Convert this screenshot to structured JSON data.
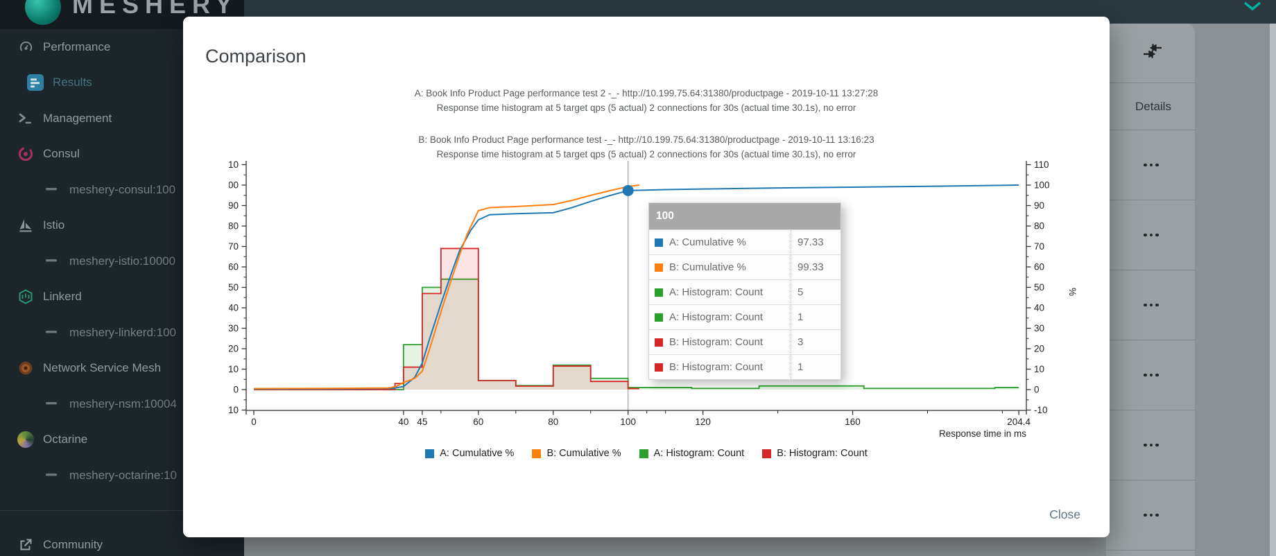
{
  "app": {
    "wordmark": "MESHERY"
  },
  "sidebar": {
    "items": [
      {
        "id": "performance",
        "label": "Performance",
        "icon": "gauge-icon",
        "level": 0,
        "active": false
      },
      {
        "id": "results",
        "label": "Results",
        "icon": "bar-chart-icon",
        "level": 1,
        "active": true
      },
      {
        "id": "management",
        "label": "Management",
        "icon": "terminal-icon",
        "level": 0,
        "active": false
      },
      {
        "id": "consul",
        "label": "Consul",
        "icon": "consul-icon",
        "level": 0,
        "active": false
      },
      {
        "id": "meshery-consul",
        "label": "meshery-consul:100",
        "icon": "dash-icon",
        "level": 2,
        "active": false
      },
      {
        "id": "istio",
        "label": "Istio",
        "icon": "istio-icon",
        "level": 0,
        "active": false
      },
      {
        "id": "meshery-istio",
        "label": "meshery-istio:10000",
        "icon": "dash-icon",
        "level": 2,
        "active": false
      },
      {
        "id": "linkerd",
        "label": "Linkerd",
        "icon": "linkerd-icon",
        "level": 0,
        "active": false
      },
      {
        "id": "meshery-linkerd",
        "label": "meshery-linkerd:100",
        "icon": "dash-icon",
        "level": 2,
        "active": false
      },
      {
        "id": "nsm",
        "label": "Network Service Mesh",
        "icon": "nsm-icon",
        "level": 0,
        "active": false
      },
      {
        "id": "meshery-nsm",
        "label": "meshery-nsm:10004",
        "icon": "dash-icon",
        "level": 2,
        "active": false
      },
      {
        "id": "octarine",
        "label": "Octarine",
        "icon": "octarine-icon",
        "level": 0,
        "active": false
      },
      {
        "id": "meshery-octarine",
        "label": "meshery-octarine:10",
        "icon": "dash-icon",
        "level": 2,
        "active": false
      }
    ],
    "footer_item": {
      "id": "community",
      "label": "Community",
      "icon": "external-link-icon"
    }
  },
  "details_panel": {
    "header": "Details",
    "row_count": 6,
    "action_icon": "more-horiz-icon",
    "collapse_icon": "compress-arrows-icon"
  },
  "modal": {
    "title": "Comparison",
    "close_label": "Close"
  },
  "chart_data": {
    "type": "combo",
    "title_lines": [
      "A: Book Info Product Page performance test 2 -_- http://10.199.75.64:31380/productpage - 2019-10-11 13:27:28",
      "Response time histogram at 5 target qps (5 actual) 2 connections for 30s (actual time 30.1s), no error",
      "B: Book Info Product Page performance test -_- http://10.199.75.64:31380/productpage - 2019-10-11 13:16:23",
      "Response time histogram at 5 target qps (5 actual) 2 connections for 30s (actual time 30.1s), no error"
    ],
    "x_axis": {
      "label": "Response time in ms",
      "min": 0,
      "max": 204.4,
      "ticks": [
        {
          "v": 0,
          "label": "0"
        },
        {
          "v": 40,
          "label": "40"
        },
        {
          "v": 45,
          "label": "45"
        },
        {
          "v": 60,
          "label": "60"
        },
        {
          "v": 80,
          "label": "80"
        },
        {
          "v": 100,
          "label": "100"
        },
        {
          "v": 120,
          "label": "120"
        },
        {
          "v": 160,
          "label": "160"
        },
        {
          "v": 204.4,
          "label": "204.4"
        }
      ],
      "minor_ticks": [
        50,
        70,
        90,
        105,
        110,
        140,
        180,
        200
      ]
    },
    "y_axis": {
      "label": "%",
      "min": -10,
      "max": 110,
      "tick_step": 10,
      "minor_step": 5,
      "sides": [
        "left",
        "right"
      ]
    },
    "series": [
      {
        "name": "A: Cumulative %",
        "type": "line",
        "color": "#1f77b4",
        "points": [
          [
            0,
            0.3
          ],
          [
            20,
            0.4
          ],
          [
            37,
            0.6
          ],
          [
            40,
            1.5
          ],
          [
            43,
            6
          ],
          [
            45,
            13
          ],
          [
            47,
            25
          ],
          [
            50,
            42
          ],
          [
            53,
            58
          ],
          [
            55,
            68
          ],
          [
            58,
            78
          ],
          [
            60,
            83
          ],
          [
            63,
            85.5
          ],
          [
            70,
            86
          ],
          [
            80,
            86.5
          ],
          [
            85,
            89
          ],
          [
            90,
            92
          ],
          [
            95,
            94.8
          ],
          [
            100,
            97.33
          ],
          [
            110,
            97.8
          ],
          [
            120,
            98.1
          ],
          [
            140,
            98.6
          ],
          [
            160,
            99
          ],
          [
            180,
            99.4
          ],
          [
            204.4,
            100
          ]
        ]
      },
      {
        "name": "B: Cumulative %",
        "type": "line",
        "color": "#ff7f0e",
        "points": [
          [
            0,
            0.5
          ],
          [
            20,
            0.6
          ],
          [
            36,
            0.8
          ],
          [
            38,
            1.5
          ],
          [
            40,
            3.5
          ],
          [
            43,
            5.5
          ],
          [
            45,
            9
          ],
          [
            47,
            20
          ],
          [
            50,
            38
          ],
          [
            53,
            55
          ],
          [
            55,
            66
          ],
          [
            57,
            76
          ],
          [
            60,
            87.5
          ],
          [
            63,
            89
          ],
          [
            70,
            89.5
          ],
          [
            80,
            90.5
          ],
          [
            85,
            92.5
          ],
          [
            90,
            95
          ],
          [
            95,
            97.2
          ],
          [
            100,
            99.33
          ],
          [
            103,
            100
          ]
        ]
      },
      {
        "name": "A: Histogram: Count",
        "type": "step-area",
        "color": "#2ca02c",
        "fill": "rgba(44,160,44,0.13)",
        "points": [
          [
            0,
            0
          ],
          [
            40,
            22
          ],
          [
            45,
            50
          ],
          [
            50,
            54
          ],
          [
            60,
            4.5
          ],
          [
            70,
            2
          ],
          [
            80,
            12
          ],
          [
            90,
            5.5
          ],
          [
            100,
            1
          ],
          [
            117,
            0.6
          ],
          [
            135,
            1.8
          ],
          [
            163,
            0.6
          ],
          [
            198,
            1
          ],
          [
            204.4,
            1
          ]
        ]
      },
      {
        "name": "B: Histogram: Count",
        "type": "step-area",
        "color": "#d62728",
        "fill": "rgba(214,39,40,0.13)",
        "points": [
          [
            0,
            0
          ],
          [
            37.7,
            3
          ],
          [
            40,
            11
          ],
          [
            45,
            47
          ],
          [
            50,
            69
          ],
          [
            60,
            4.4
          ],
          [
            70,
            1.7
          ],
          [
            80,
            11.5
          ],
          [
            90,
            4
          ],
          [
            100,
            0.5
          ],
          [
            103,
            0.5
          ]
        ]
      }
    ],
    "focus": {
      "x": 100,
      "point": {
        "series": "A: Cumulative %",
        "x": 100,
        "y": 97.33,
        "color": "#1f77b4"
      }
    },
    "tooltip": {
      "title": "100",
      "rows": [
        {
          "color": "#1f77b4",
          "name": "A: Cumulative %",
          "value": "97.33"
        },
        {
          "color": "#ff7f0e",
          "name": "B: Cumulative %",
          "value": "99.33"
        },
        {
          "color": "#2ca02c",
          "name": "A: Histogram: Count",
          "value": "5"
        },
        {
          "color": "#2ca02c",
          "name": "A: Histogram: Count",
          "value": "1"
        },
        {
          "color": "#d62728",
          "name": "B: Histogram: Count",
          "value": "3"
        },
        {
          "color": "#d62728",
          "name": "B: Histogram: Count",
          "value": "1"
        }
      ]
    },
    "legend": [
      {
        "color": "#1f77b4",
        "label": "A: Cumulative %"
      },
      {
        "color": "#ff7f0e",
        "label": "B: Cumulative %"
      },
      {
        "color": "#2ca02c",
        "label": "A: Histogram: Count"
      },
      {
        "color": "#d62728",
        "label": "B: Histogram: Count"
      }
    ]
  }
}
